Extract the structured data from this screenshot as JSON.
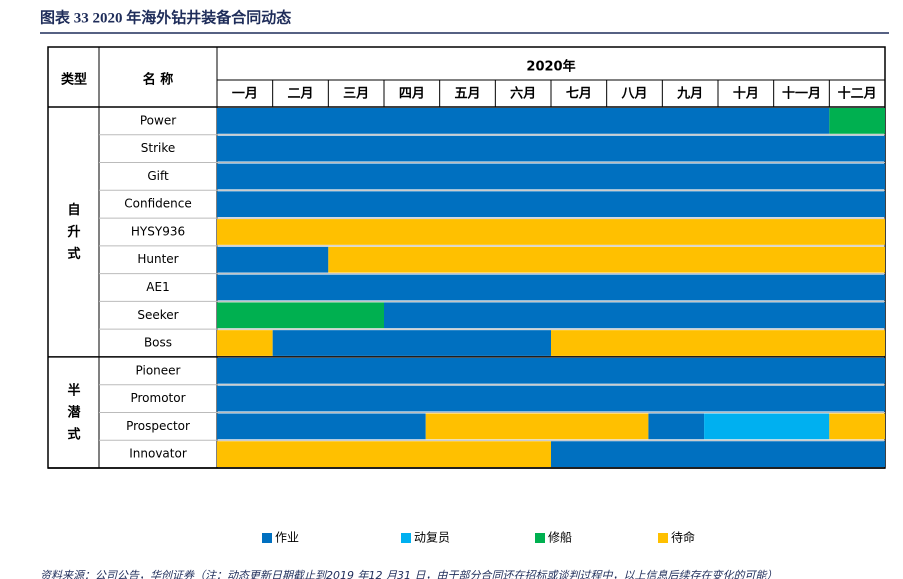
{
  "title": "图表 33   2020 年海外钻井装备合同动态",
  "header": {
    "type": "类型",
    "name": "名 称",
    "year": "2020年",
    "months": [
      "一月",
      "二月",
      "三月",
      "四月",
      "五月",
      "六月",
      "七月",
      "八月",
      "九月",
      "十月",
      "十一月",
      "十二月"
    ]
  },
  "legend": [
    {
      "name": "作业",
      "color": "#0070c0"
    },
    {
      "name": "动复员",
      "color": "#00b0f0"
    },
    {
      "name": "修船",
      "color": "#00b050"
    },
    {
      "name": "待命",
      "color": "#ffc000"
    }
  ],
  "groups": [
    {
      "label": "自升式",
      "rows": [
        {
          "name": "Power",
          "segments": [
            {
              "start": 0,
              "end": 11,
              "status": 0
            },
            {
              "start": 11,
              "end": 12,
              "status": 2
            }
          ]
        },
        {
          "name": "Strike",
          "segments": [
            {
              "start": 0,
              "end": 12,
              "status": 0
            }
          ]
        },
        {
          "name": "Gift",
          "segments": [
            {
              "start": 0,
              "end": 12,
              "status": 0
            }
          ]
        },
        {
          "name": "Confidence",
          "segments": [
            {
              "start": 0,
              "end": 12,
              "status": 0
            }
          ]
        },
        {
          "name": "HYSY936",
          "segments": [
            {
              "start": 0,
              "end": 12,
              "status": 3
            }
          ]
        },
        {
          "name": "Hunter",
          "segments": [
            {
              "start": 0,
              "end": 2,
              "status": 0
            },
            {
              "start": 2,
              "end": 12,
              "status": 3
            }
          ]
        },
        {
          "name": "AE1",
          "segments": [
            {
              "start": 0,
              "end": 12,
              "status": 0
            }
          ]
        },
        {
          "name": "Seeker",
          "segments": [
            {
              "start": 0,
              "end": 3,
              "status": 2
            },
            {
              "start": 3,
              "end": 12,
              "status": 0
            }
          ]
        },
        {
          "name": "Boss",
          "segments": [
            {
              "start": 0,
              "end": 1,
              "status": 3
            },
            {
              "start": 1,
              "end": 6,
              "status": 0
            },
            {
              "start": 6,
              "end": 12,
              "status": 3
            }
          ]
        }
      ]
    },
    {
      "label": "半潜式",
      "rows": [
        {
          "name": "Pioneer",
          "segments": [
            {
              "start": 0,
              "end": 12,
              "status": 0
            }
          ]
        },
        {
          "name": "Promotor",
          "segments": [
            {
              "start": 0,
              "end": 12,
              "status": 0
            }
          ]
        },
        {
          "name": "Prospector",
          "segments": [
            {
              "start": 0,
              "end": 3.75,
              "status": 0
            },
            {
              "start": 3.75,
              "end": 7.75,
              "status": 3
            },
            {
              "start": 7.75,
              "end": 8.75,
              "status": 0
            },
            {
              "start": 8.75,
              "end": 11,
              "status": 1
            },
            {
              "start": 11,
              "end": 12,
              "status": 3
            }
          ]
        },
        {
          "name": "Innovator",
          "segments": [
            {
              "start": 0,
              "end": 6,
              "status": 3
            },
            {
              "start": 6,
              "end": 12,
              "status": 0
            }
          ]
        }
      ]
    }
  ],
  "source": "资料来源：公司公告，华创证券（注：动态更新日期截止到2019 年12 月31 日，由于部分合同还在招标或谈判过程中，以上信息后续存在变化的可能）"
}
